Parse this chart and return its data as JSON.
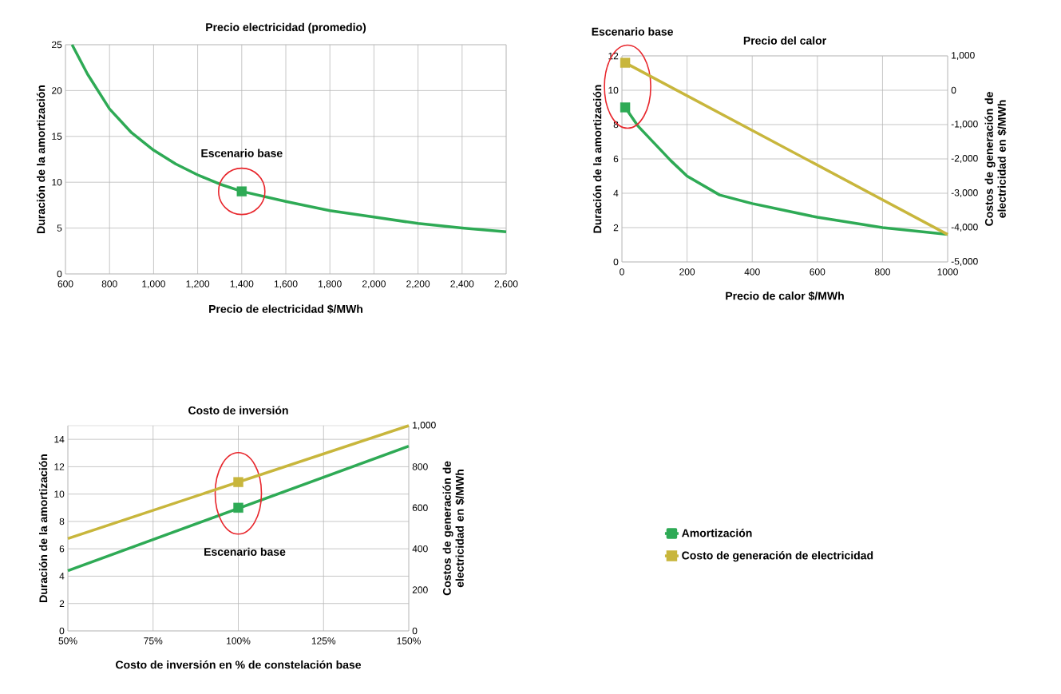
{
  "chart_data": [
    {
      "type": "line",
      "title": "Precio electricidad (promedio)",
      "xlabel": "Precio de electricidad $/MWh",
      "ylabel": "Duración de la amortización",
      "xlim": [
        600,
        2600
      ],
      "xticks": [
        600,
        800,
        {
          "value": 1000,
          "label": "1,000"
        },
        {
          "value": 1200,
          "label": "1,200"
        },
        {
          "value": 1400,
          "label": "1,400"
        },
        {
          "value": 1600,
          "label": "1,600"
        },
        {
          "value": 1800,
          "label": "1,800"
        },
        {
          "value": 2000,
          "label": "2,000"
        },
        {
          "value": 2200,
          "label": "2,200"
        },
        {
          "value": 2400,
          "label": "2,400"
        },
        {
          "value": 2600,
          "label": "2,600"
        }
      ],
      "ylim": [
        0,
        25
      ],
      "yticks": [
        0,
        5,
        10,
        15,
        20,
        25
      ],
      "grid": true,
      "series": [
        {
          "color": "#2eaa55",
          "x": [
            630,
            700,
            800,
            900,
            1000,
            1100,
            1200,
            1300,
            1400,
            1600,
            1800,
            2000,
            2200,
            2400,
            2600
          ],
          "values": [
            25,
            21.8,
            18,
            15.4,
            13.5,
            12,
            10.8,
            9.8,
            9,
            7.9,
            6.9,
            6.2,
            5.5,
            5,
            4.6
          ]
        },
        {
          "type": "scatter",
          "marker": "square",
          "color": "#2eaa55",
          "x": [
            1400
          ],
          "values": [
            9
          ]
        }
      ],
      "annotations": [
        "Escenario base"
      ]
    },
    {
      "type": "line",
      "title": "Precio del calor",
      "xlabel": "Precio de calor $/MWh",
      "ylabel": "Duración de la amortización",
      "y2label": "Costos de generación de electricidad en $/MWh",
      "xlim": [
        0,
        1000
      ],
      "xticks": [
        0,
        200,
        400,
        600,
        800,
        1000
      ],
      "ylim": [
        0,
        12
      ],
      "yticks": [
        0,
        2,
        4,
        6,
        8,
        10,
        12
      ],
      "y2lim": [
        -5000,
        1000
      ],
      "y2ticks": [
        {
          "value": -5000,
          "label": "-5,000"
        },
        {
          "value": -4000,
          "label": "-4,000"
        },
        {
          "value": -3000,
          "label": "-3,000"
        },
        {
          "value": -2000,
          "label": "-2,000"
        },
        {
          "value": -1000,
          "label": "-1,000"
        },
        0,
        {
          "value": 1000,
          "label": "1,000"
        }
      ],
      "grid": true,
      "series": [
        {
          "color": "#2eaa55",
          "x": [
            10,
            50,
            100,
            150,
            200,
            300,
            400,
            500,
            600,
            700,
            800,
            900,
            1000
          ],
          "values": [
            9,
            7.9,
            6.9,
            5.9,
            5,
            3.9,
            3.4,
            3,
            2.6,
            2.3,
            2,
            1.8,
            1.6
          ]
        },
        {
          "color": "#c8b63c",
          "axis": "y2",
          "x": [
            10,
            1000
          ],
          "values": [
            800,
            -4200
          ]
        },
        {
          "type": "scatter",
          "marker": "square",
          "color": "#2eaa55",
          "x": [
            10
          ],
          "values": [
            9
          ]
        },
        {
          "type": "scatter",
          "marker": "square",
          "color": "#c8b63c",
          "axis": "y2",
          "x": [
            10
          ],
          "values": [
            800
          ]
        }
      ],
      "annotations": [
        "Escenario base"
      ]
    },
    {
      "type": "line",
      "title": "Costo de inversión",
      "xlabel": "Costo de inversión en % de constelación base",
      "ylabel": "Duración de la amortización",
      "y2label": "Costos de generación de electricidad en $/MWh",
      "xlim": [
        50,
        150
      ],
      "xticks": [
        {
          "value": 50,
          "label": "50%"
        },
        {
          "value": 75,
          "label": "75%"
        },
        {
          "value": 100,
          "label": "100%"
        },
        {
          "value": 125,
          "label": "125%"
        },
        {
          "value": 150,
          "label": "150%"
        }
      ],
      "ylim": [
        0,
        15
      ],
      "yticks": [
        0,
        2,
        4,
        6,
        8,
        10,
        12,
        14
      ],
      "y2lim": [
        0,
        1000
      ],
      "y2ticks": [
        0,
        200,
        400,
        600,
        800,
        {
          "value": 1000,
          "label": "1,000"
        }
      ],
      "grid": true,
      "legend": "right",
      "series": [
        {
          "name": "Amortización",
          "color": "#2eaa55",
          "x": [
            50,
            150
          ],
          "values": [
            4.4,
            13.5
          ]
        },
        {
          "name": "Costo de generación de electricidad",
          "color": "#c8b63c",
          "axis": "y2",
          "x": [
            50,
            150
          ],
          "values": [
            450,
            1000
          ]
        },
        {
          "type": "scatter",
          "marker": "square",
          "color": "#2eaa55",
          "x": [
            100
          ],
          "values": [
            9
          ]
        },
        {
          "type": "scatter",
          "marker": "square",
          "color": "#c8b63c",
          "axis": "y2",
          "x": [
            100
          ],
          "values": [
            725
          ]
        }
      ],
      "annotations": [
        "Escenario base"
      ]
    }
  ]
}
